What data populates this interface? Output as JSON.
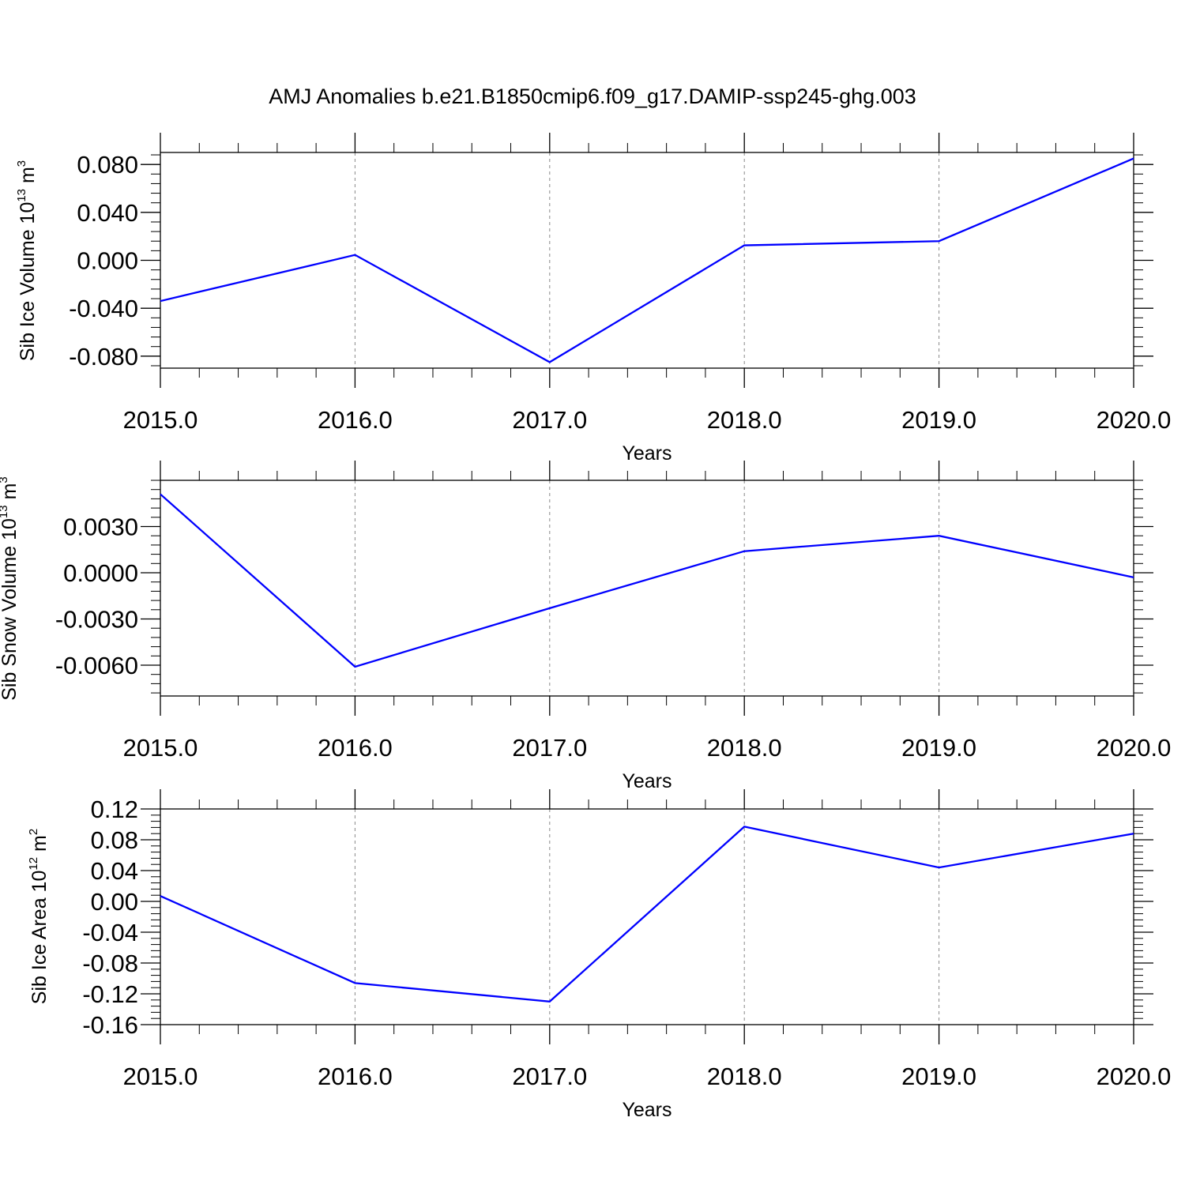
{
  "figure": {
    "title": "AMJ Anomalies b.e21.B1850cmip6.f09_g17.DAMIP-ssp245-ghg.003"
  },
  "colors": {
    "line": "#0000ff",
    "axis": "#000000",
    "grid": "#888888"
  },
  "chart_data": [
    {
      "type": "line",
      "x": [
        2015,
        2016,
        2017,
        2018,
        2019,
        2020
      ],
      "values": [
        -0.034,
        0.0045,
        -0.085,
        0.0125,
        0.016,
        0.085
      ],
      "xlabel": "Years",
      "ylabel": {
        "main": "Sib Ice Volume 10",
        "exp": "13",
        "unit": " m",
        "unit_exp": "3"
      },
      "xlim": [
        2015,
        2020
      ],
      "ylim": [
        -0.09,
        0.09
      ],
      "yticks": [
        -0.08,
        -0.04,
        0.0,
        0.04,
        0.08
      ],
      "ytick_labels": [
        "-0.080",
        "-0.040",
        "0.000",
        "0.040",
        "0.080"
      ],
      "xticks": [
        2015,
        2016,
        2017,
        2018,
        2019,
        2020
      ],
      "xtick_labels": [
        "2015.0",
        "2016.0",
        "2017.0",
        "2018.0",
        "2019.0",
        "2020.0"
      ],
      "grid": "x-dashed"
    },
    {
      "type": "line",
      "x": [
        2015,
        2016,
        2017,
        2018,
        2019,
        2020
      ],
      "values": [
        0.0051,
        -0.0061,
        -0.0023,
        0.0014,
        0.0024,
        -0.0003
      ],
      "xlabel": "Years",
      "ylabel": {
        "main": "Sib Snow Volume 10",
        "exp": "13",
        "unit": " m",
        "unit_exp": "3"
      },
      "xlim": [
        2015,
        2020
      ],
      "ylim": [
        -0.008,
        0.006
      ],
      "yticks": [
        -0.006,
        -0.003,
        0.0,
        0.003
      ],
      "ytick_labels": [
        "-0.0060",
        "-0.0030",
        "0.0000",
        "0.0030"
      ],
      "xticks": [
        2015,
        2016,
        2017,
        2018,
        2019,
        2020
      ],
      "xtick_labels": [
        "2015.0",
        "2016.0",
        "2017.0",
        "2018.0",
        "2019.0",
        "2020.0"
      ],
      "grid": "x-dashed"
    },
    {
      "type": "line",
      "x": [
        2015,
        2016,
        2017,
        2018,
        2019,
        2020
      ],
      "values": [
        0.007,
        -0.106,
        -0.13,
        0.097,
        0.044,
        0.088
      ],
      "xlabel": "Years",
      "ylabel": {
        "main": "Sib Ice Area 10",
        "exp": "12",
        "unit": " m",
        "unit_exp": "2"
      },
      "xlim": [
        2015,
        2020
      ],
      "ylim": [
        -0.16,
        0.12
      ],
      "yticks": [
        -0.16,
        -0.12,
        -0.08,
        -0.04,
        0.0,
        0.04,
        0.08,
        0.12
      ],
      "ytick_labels": [
        "-0.16",
        "-0.12",
        "-0.08",
        "-0.04",
        "0.00",
        "0.04",
        "0.08",
        "0.12"
      ],
      "xticks": [
        2015,
        2016,
        2017,
        2018,
        2019,
        2020
      ],
      "xtick_labels": [
        "2015.0",
        "2016.0",
        "2017.0",
        "2018.0",
        "2019.0",
        "2020.0"
      ],
      "grid": "x-dashed"
    }
  ]
}
